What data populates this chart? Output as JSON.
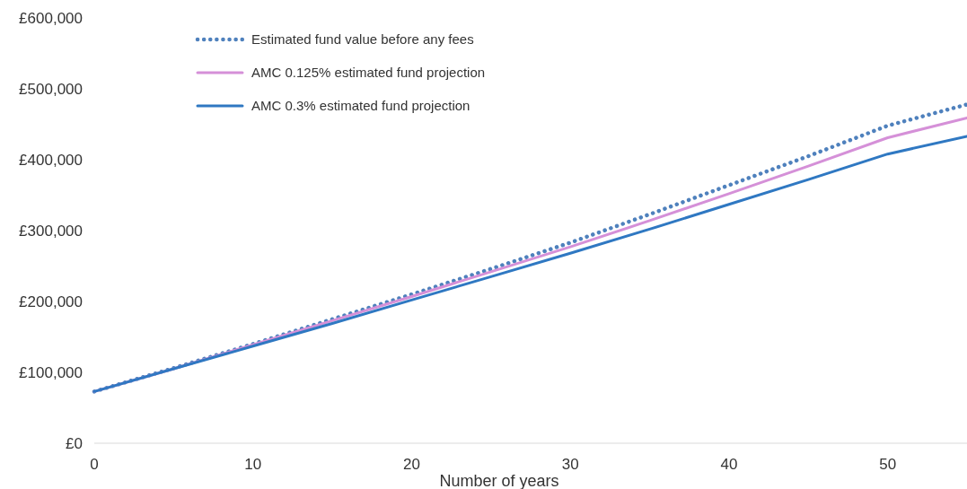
{
  "chart_data": {
    "type": "line",
    "xlabel": "Number of years",
    "x": [
      0,
      5,
      10,
      15,
      20,
      25,
      30,
      35,
      40,
      45,
      50,
      55
    ],
    "xlim": [
      0,
      55
    ],
    "xticks": [
      0,
      10,
      20,
      30,
      40,
      50
    ],
    "ylim": [
      0,
      600000
    ],
    "yticks": [
      {
        "value": 0,
        "label": "£0"
      },
      {
        "value": 100000,
        "label": "£100,000"
      },
      {
        "value": 200000,
        "label": "£200,000"
      },
      {
        "value": 300000,
        "label": "£300,000"
      },
      {
        "value": 400000,
        "label": "£400,000"
      },
      {
        "value": 500000,
        "label": "£500,000"
      },
      {
        "value": 600000,
        "label": "£600,000"
      }
    ],
    "grid": false,
    "legend": "top left",
    "series": [
      {
        "name": "Estimated fund value before any fees",
        "color": "#4f81bd",
        "line_style": "dotted",
        "values": [
          73000,
          106000,
          140000,
          175000,
          210000,
          246000,
          283000,
          323000,
          364000,
          405000,
          448000,
          478000
        ]
      },
      {
        "name": "AMC 0.125% estimated fund projection",
        "color": "#d590d8",
        "line_style": "solid",
        "values": [
          73000,
          105000,
          139000,
          173000,
          207000,
          242000,
          277000,
          314000,
          352000,
          391000,
          431000,
          459000
        ]
      },
      {
        "name": "AMC 0.3% estimated fund projection",
        "color": "#2f78c2",
        "line_style": "solid",
        "values": [
          73000,
          105000,
          137000,
          169000,
          202000,
          235000,
          268000,
          302000,
          337000,
          372000,
          408000,
          433000
        ]
      }
    ]
  }
}
